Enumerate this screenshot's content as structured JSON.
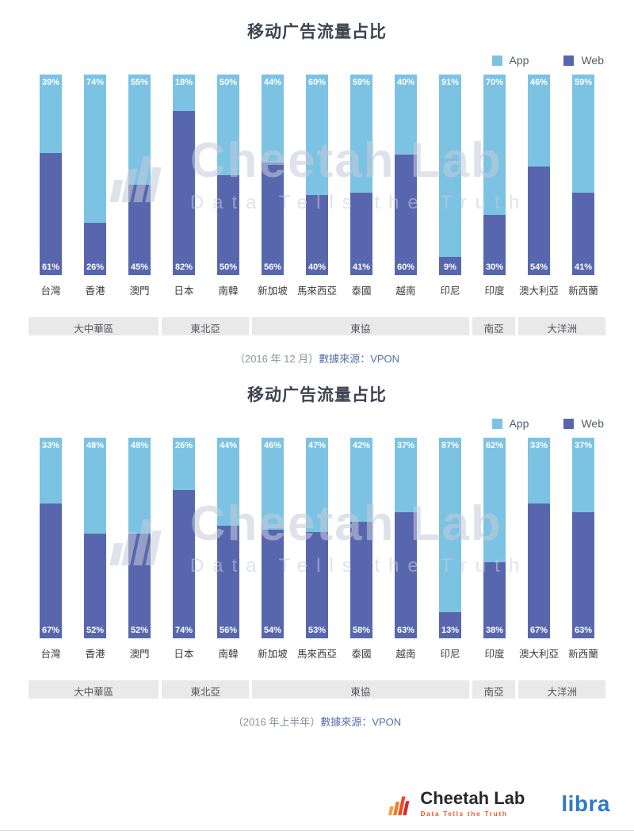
{
  "watermark": {
    "title": "Cheetah Lab",
    "subtitle": "Data Tells the Truth"
  },
  "footer": {
    "brand": "Cheetah Lab",
    "tagline": "Data Tells the Truth",
    "partner": "libra"
  },
  "colors": {
    "app": "#7CC3E3",
    "web": "#5867AD",
    "group_band": "#E9E9E9"
  },
  "chart_data": [
    {
      "type": "bar",
      "stacked": true,
      "title": "移动广告流量占比",
      "unit": "%",
      "ylim": [
        0,
        100
      ],
      "legend_position": "top-right",
      "categories": [
        "台灣",
        "香港",
        "澳門",
        "日本",
        "南韓",
        "新加坡",
        "馬來西亞",
        "泰國",
        "越南",
        "印尼",
        "印度",
        "澳大利亞",
        "新西蘭"
      ],
      "series": [
        {
          "name": "App",
          "color": "#7CC3E3",
          "values": [
            39,
            74,
            55,
            18,
            50,
            44,
            60,
            59,
            40,
            91,
            70,
            46,
            59
          ]
        },
        {
          "name": "Web",
          "color": "#5867AD",
          "values": [
            61,
            26,
            45,
            82,
            50,
            56,
            40,
            41,
            60,
            9,
            30,
            54,
            41
          ]
        }
      ],
      "groups": [
        {
          "label": "大中華區",
          "span": 3
        },
        {
          "label": "東北亞",
          "span": 2
        },
        {
          "label": "東協",
          "span": 5
        },
        {
          "label": "南亞",
          "span": 1
        },
        {
          "label": "大洋洲",
          "span": 2
        }
      ],
      "caption_period": "（2016 年 12 月）",
      "caption_source": "數據來源：VPON"
    },
    {
      "type": "bar",
      "stacked": true,
      "title": "移动广告流量占比",
      "unit": "%",
      "ylim": [
        0,
        100
      ],
      "legend_position": "top-right",
      "categories": [
        "台灣",
        "香港",
        "澳門",
        "日本",
        "南韓",
        "新加坡",
        "馬來西亞",
        "泰國",
        "越南",
        "印尼",
        "印度",
        "澳大利亞",
        "新西蘭"
      ],
      "series": [
        {
          "name": "App",
          "color": "#7CC3E3",
          "values": [
            33,
            48,
            48,
            26,
            44,
            46,
            47,
            42,
            37,
            87,
            62,
            33,
            37
          ]
        },
        {
          "name": "Web",
          "color": "#5867AD",
          "values": [
            67,
            52,
            52,
            74,
            56,
            54,
            53,
            58,
            63,
            13,
            38,
            67,
            63
          ]
        }
      ],
      "groups": [
        {
          "label": "大中華區",
          "span": 3
        },
        {
          "label": "東北亞",
          "span": 2
        },
        {
          "label": "東協",
          "span": 5
        },
        {
          "label": "南亞",
          "span": 1
        },
        {
          "label": "大洋洲",
          "span": 2
        }
      ],
      "caption_period": "（2016 年上半年）",
      "caption_source": "數據來源：VPON"
    }
  ]
}
